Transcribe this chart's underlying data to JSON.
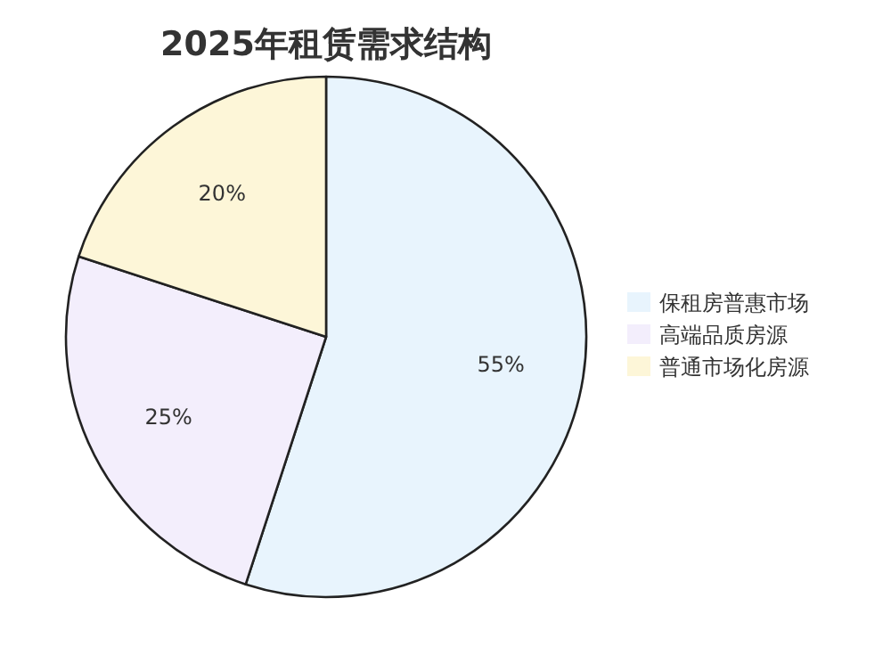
{
  "chart_data": {
    "type": "pie",
    "title": "2025年租赁需求结构",
    "categories": [
      "保租房普惠市场",
      "高端品质房源",
      "普通市场化房源"
    ],
    "values": [
      55,
      25,
      20
    ],
    "colors": [
      "#e8f4fd",
      "#f3eefc",
      "#fdf6d8"
    ],
    "value_labels": [
      "55%",
      "25%",
      "20%"
    ],
    "legend": "right"
  }
}
